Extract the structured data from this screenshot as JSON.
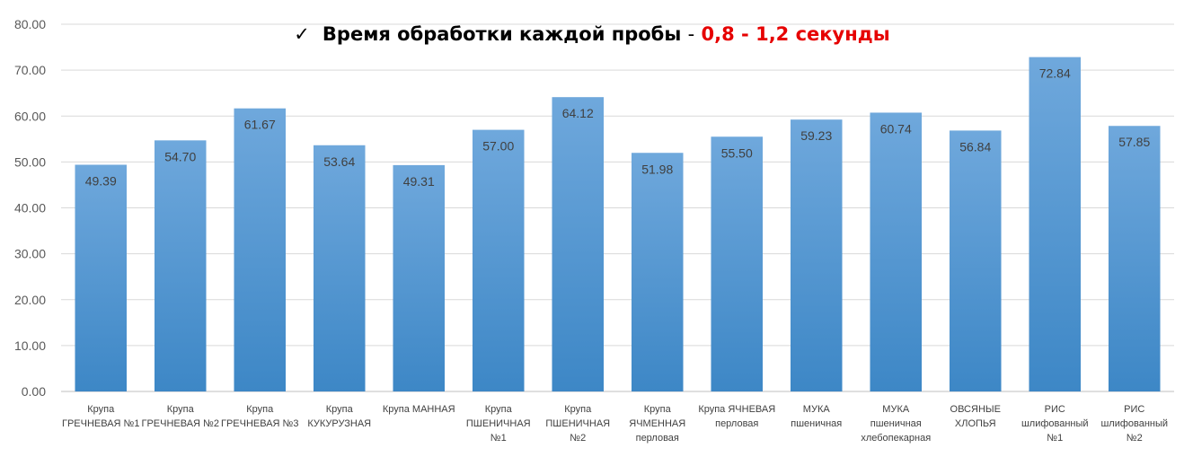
{
  "title": {
    "check_mark": "✓",
    "main": "Время обработки каждой пробы",
    "separator": "-",
    "highlight": "0,8 - 1,2 секунды",
    "highlight_color": "#e60000"
  },
  "chart_data": {
    "type": "bar",
    "title": "",
    "xlabel": "",
    "ylabel": "",
    "ylim": [
      0,
      80
    ],
    "yticks": [
      "0.00",
      "10.00",
      "20.00",
      "30.00",
      "40.00",
      "50.00",
      "60.00",
      "70.00",
      "80.00"
    ],
    "grid": true,
    "bar_color_top": "#6fa8dc",
    "bar_color_bottom": "#3d87c6",
    "categories": [
      [
        "Крупа",
        "ГРЕЧНЕВАЯ №1"
      ],
      [
        "Крупа",
        "ГРЕЧНЕВАЯ №2"
      ],
      [
        "Крупа",
        "ГРЕЧНЕВАЯ №3"
      ],
      [
        "Крупа",
        "КУКУРУЗНАЯ"
      ],
      [
        "Крупа МАННАЯ"
      ],
      [
        "Крупа",
        "ПШЕНИЧНАЯ",
        "№1"
      ],
      [
        "Крупа",
        "ПШЕНИЧНАЯ",
        "№2"
      ],
      [
        "Крупа",
        "ЯЧМЕННАЯ",
        "перловая"
      ],
      [
        "Крупа ЯЧНЕВАЯ",
        "перловая"
      ],
      [
        "МУКА",
        "пшеничная"
      ],
      [
        "МУКА",
        "пшеничная",
        "хлебопекарная"
      ],
      [
        "ОВСЯНЫЕ",
        "ХЛОПЬЯ"
      ],
      [
        "РИС",
        "шлифованный",
        "№1"
      ],
      [
        "РИС",
        "шлифованный",
        "№2"
      ]
    ],
    "values": [
      49.39,
      54.7,
      61.67,
      53.64,
      49.31,
      57.0,
      64.12,
      51.98,
      55.5,
      59.23,
      60.74,
      56.84,
      72.84,
      57.85
    ],
    "data_labels": [
      "49.39",
      "54.70",
      "61.67",
      "53.64",
      "49.31",
      "57.00",
      "64.12",
      "51.98",
      "55.50",
      "59.23",
      "60.74",
      "56.84",
      "72.84",
      "57.85"
    ]
  }
}
